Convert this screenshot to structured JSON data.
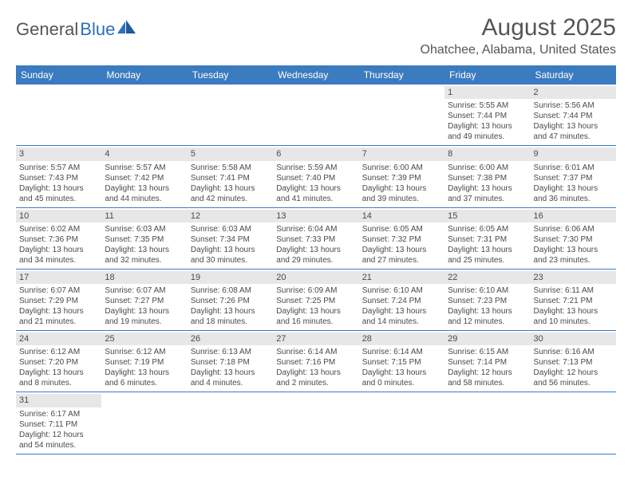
{
  "logo": {
    "part1": "General",
    "part2": "Blue"
  },
  "title": "August 2025",
  "location": "Ohatchee, Alabama, United States",
  "colors": {
    "header_bg": "#3b7bbf",
    "header_fg": "#ffffff",
    "daynum_bg": "#e7e7e7",
    "text": "#4a4a4a",
    "rule": "#3b7bbf",
    "logo_blue": "#2f6fb5",
    "logo_gray": "#555555"
  },
  "day_names": [
    "Sunday",
    "Monday",
    "Tuesday",
    "Wednesday",
    "Thursday",
    "Friday",
    "Saturday"
  ],
  "weeks": [
    [
      {
        "blank": true
      },
      {
        "blank": true
      },
      {
        "blank": true
      },
      {
        "blank": true
      },
      {
        "blank": true
      },
      {
        "n": "1",
        "sunrise": "Sunrise: 5:55 AM",
        "sunset": "Sunset: 7:44 PM",
        "daylight": "Daylight: 13 hours and 49 minutes."
      },
      {
        "n": "2",
        "sunrise": "Sunrise: 5:56 AM",
        "sunset": "Sunset: 7:44 PM",
        "daylight": "Daylight: 13 hours and 47 minutes."
      }
    ],
    [
      {
        "n": "3",
        "sunrise": "Sunrise: 5:57 AM",
        "sunset": "Sunset: 7:43 PM",
        "daylight": "Daylight: 13 hours and 45 minutes."
      },
      {
        "n": "4",
        "sunrise": "Sunrise: 5:57 AM",
        "sunset": "Sunset: 7:42 PM",
        "daylight": "Daylight: 13 hours and 44 minutes."
      },
      {
        "n": "5",
        "sunrise": "Sunrise: 5:58 AM",
        "sunset": "Sunset: 7:41 PM",
        "daylight": "Daylight: 13 hours and 42 minutes."
      },
      {
        "n": "6",
        "sunrise": "Sunrise: 5:59 AM",
        "sunset": "Sunset: 7:40 PM",
        "daylight": "Daylight: 13 hours and 41 minutes."
      },
      {
        "n": "7",
        "sunrise": "Sunrise: 6:00 AM",
        "sunset": "Sunset: 7:39 PM",
        "daylight": "Daylight: 13 hours and 39 minutes."
      },
      {
        "n": "8",
        "sunrise": "Sunrise: 6:00 AM",
        "sunset": "Sunset: 7:38 PM",
        "daylight": "Daylight: 13 hours and 37 minutes."
      },
      {
        "n": "9",
        "sunrise": "Sunrise: 6:01 AM",
        "sunset": "Sunset: 7:37 PM",
        "daylight": "Daylight: 13 hours and 36 minutes."
      }
    ],
    [
      {
        "n": "10",
        "sunrise": "Sunrise: 6:02 AM",
        "sunset": "Sunset: 7:36 PM",
        "daylight": "Daylight: 13 hours and 34 minutes."
      },
      {
        "n": "11",
        "sunrise": "Sunrise: 6:03 AM",
        "sunset": "Sunset: 7:35 PM",
        "daylight": "Daylight: 13 hours and 32 minutes."
      },
      {
        "n": "12",
        "sunrise": "Sunrise: 6:03 AM",
        "sunset": "Sunset: 7:34 PM",
        "daylight": "Daylight: 13 hours and 30 minutes."
      },
      {
        "n": "13",
        "sunrise": "Sunrise: 6:04 AM",
        "sunset": "Sunset: 7:33 PM",
        "daylight": "Daylight: 13 hours and 29 minutes."
      },
      {
        "n": "14",
        "sunrise": "Sunrise: 6:05 AM",
        "sunset": "Sunset: 7:32 PM",
        "daylight": "Daylight: 13 hours and 27 minutes."
      },
      {
        "n": "15",
        "sunrise": "Sunrise: 6:05 AM",
        "sunset": "Sunset: 7:31 PM",
        "daylight": "Daylight: 13 hours and 25 minutes."
      },
      {
        "n": "16",
        "sunrise": "Sunrise: 6:06 AM",
        "sunset": "Sunset: 7:30 PM",
        "daylight": "Daylight: 13 hours and 23 minutes."
      }
    ],
    [
      {
        "n": "17",
        "sunrise": "Sunrise: 6:07 AM",
        "sunset": "Sunset: 7:29 PM",
        "daylight": "Daylight: 13 hours and 21 minutes."
      },
      {
        "n": "18",
        "sunrise": "Sunrise: 6:07 AM",
        "sunset": "Sunset: 7:27 PM",
        "daylight": "Daylight: 13 hours and 19 minutes."
      },
      {
        "n": "19",
        "sunrise": "Sunrise: 6:08 AM",
        "sunset": "Sunset: 7:26 PM",
        "daylight": "Daylight: 13 hours and 18 minutes."
      },
      {
        "n": "20",
        "sunrise": "Sunrise: 6:09 AM",
        "sunset": "Sunset: 7:25 PM",
        "daylight": "Daylight: 13 hours and 16 minutes."
      },
      {
        "n": "21",
        "sunrise": "Sunrise: 6:10 AM",
        "sunset": "Sunset: 7:24 PM",
        "daylight": "Daylight: 13 hours and 14 minutes."
      },
      {
        "n": "22",
        "sunrise": "Sunrise: 6:10 AM",
        "sunset": "Sunset: 7:23 PM",
        "daylight": "Daylight: 13 hours and 12 minutes."
      },
      {
        "n": "23",
        "sunrise": "Sunrise: 6:11 AM",
        "sunset": "Sunset: 7:21 PM",
        "daylight": "Daylight: 13 hours and 10 minutes."
      }
    ],
    [
      {
        "n": "24",
        "sunrise": "Sunrise: 6:12 AM",
        "sunset": "Sunset: 7:20 PM",
        "daylight": "Daylight: 13 hours and 8 minutes."
      },
      {
        "n": "25",
        "sunrise": "Sunrise: 6:12 AM",
        "sunset": "Sunset: 7:19 PM",
        "daylight": "Daylight: 13 hours and 6 minutes."
      },
      {
        "n": "26",
        "sunrise": "Sunrise: 6:13 AM",
        "sunset": "Sunset: 7:18 PM",
        "daylight": "Daylight: 13 hours and 4 minutes."
      },
      {
        "n": "27",
        "sunrise": "Sunrise: 6:14 AM",
        "sunset": "Sunset: 7:16 PM",
        "daylight": "Daylight: 13 hours and 2 minutes."
      },
      {
        "n": "28",
        "sunrise": "Sunrise: 6:14 AM",
        "sunset": "Sunset: 7:15 PM",
        "daylight": "Daylight: 13 hours and 0 minutes."
      },
      {
        "n": "29",
        "sunrise": "Sunrise: 6:15 AM",
        "sunset": "Sunset: 7:14 PM",
        "daylight": "Daylight: 12 hours and 58 minutes."
      },
      {
        "n": "30",
        "sunrise": "Sunrise: 6:16 AM",
        "sunset": "Sunset: 7:13 PM",
        "daylight": "Daylight: 12 hours and 56 minutes."
      }
    ],
    [
      {
        "n": "31",
        "sunrise": "Sunrise: 6:17 AM",
        "sunset": "Sunset: 7:11 PM",
        "daylight": "Daylight: 12 hours and 54 minutes."
      },
      {
        "blank": true
      },
      {
        "blank": true
      },
      {
        "blank": true
      },
      {
        "blank": true
      },
      {
        "blank": true
      },
      {
        "blank": true
      }
    ]
  ]
}
